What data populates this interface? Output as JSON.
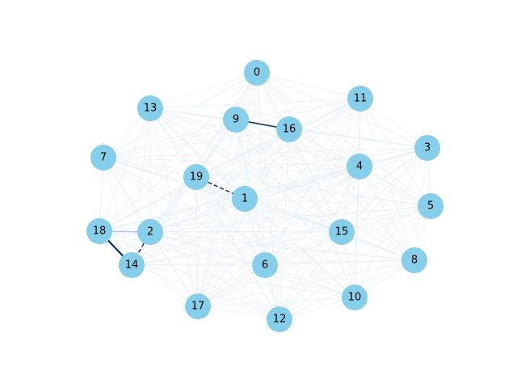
{
  "graph": {
    "node_color": "#87ceeb",
    "faint_edge_color": "#e6eef8",
    "nodes": [
      {
        "id": "0",
        "label": "0"
      },
      {
        "id": "1",
        "label": "1"
      },
      {
        "id": "2",
        "label": "2"
      },
      {
        "id": "3",
        "label": "3"
      },
      {
        "id": "4",
        "label": "4"
      },
      {
        "id": "5",
        "label": "5"
      },
      {
        "id": "6",
        "label": "6"
      },
      {
        "id": "7",
        "label": "7"
      },
      {
        "id": "8",
        "label": "8"
      },
      {
        "id": "9",
        "label": "9"
      },
      {
        "id": "10",
        "label": "10"
      },
      {
        "id": "11",
        "label": "11"
      },
      {
        "id": "12",
        "label": "12"
      },
      {
        "id": "13",
        "label": "13"
      },
      {
        "id": "14",
        "label": "14"
      },
      {
        "id": "15",
        "label": "15"
      },
      {
        "id": "16",
        "label": "16"
      },
      {
        "id": "17",
        "label": "17"
      },
      {
        "id": "18",
        "label": "18"
      },
      {
        "id": "19",
        "label": "19"
      }
    ],
    "highlighted_edges": [
      {
        "source": "9",
        "target": "16",
        "color": "#14305a",
        "style": "solid"
      },
      {
        "source": "19",
        "target": "1",
        "color": "#14305a",
        "style": "dashed"
      },
      {
        "source": "18",
        "target": "14",
        "color": "#0b2d5b",
        "style": "solid"
      },
      {
        "source": "2",
        "target": "14",
        "color": "#14305a",
        "style": "dashed"
      },
      {
        "source": "18",
        "target": "2",
        "color": "#b8c8e6",
        "style": "solid"
      }
    ]
  }
}
